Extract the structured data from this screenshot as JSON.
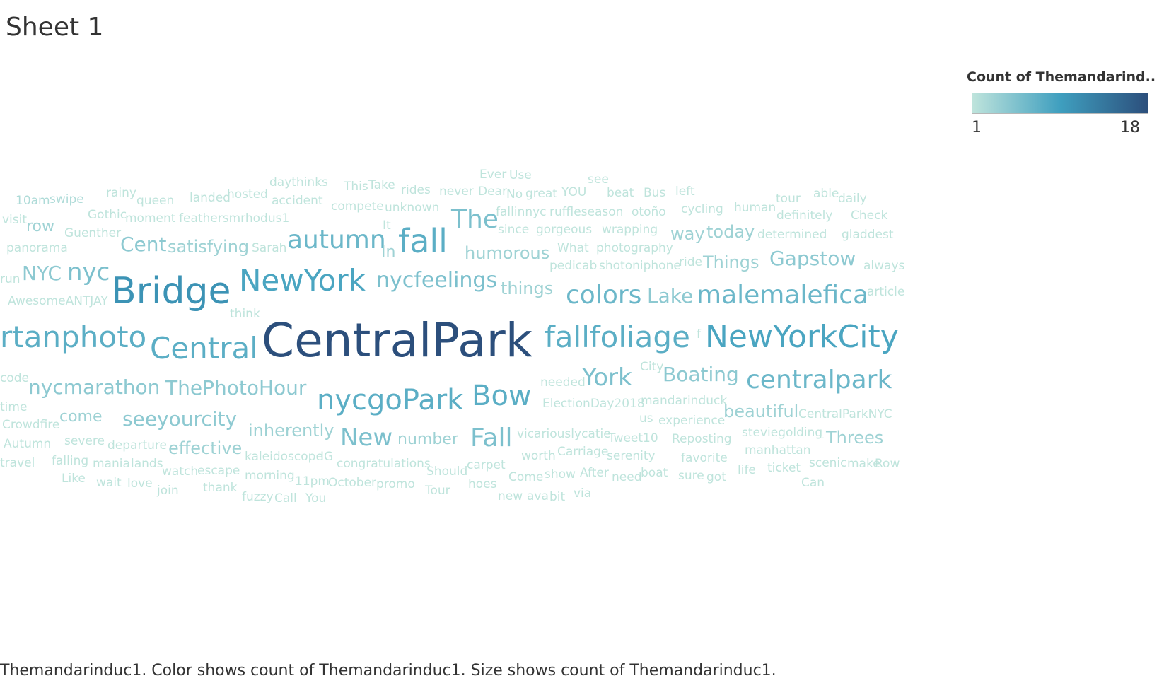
{
  "sheet_title": "Sheet 1",
  "legend": {
    "title": "Count of Themandarind..",
    "min_label": "1",
    "max_label": "18",
    "color_low": "#bfe4dc",
    "color_mid": "#3f9fbf",
    "color_high": "#2c4f7c"
  },
  "caption": "Themandarinduc1.  Color shows count of Themandarinduc1.  Size shows count of Themandarinduc1.",
  "chart_data": {
    "type": "word-cloud",
    "color_measure": "count",
    "size_measure": "count",
    "count_range": [
      1,
      18
    ],
    "words": [
      {
        "text": "CentralPark",
        "count": 18
      },
      {
        "text": "Bridge",
        "count": 10
      },
      {
        "text": "NewYork",
        "count": 8
      },
      {
        "text": "NewYorkCity",
        "count": 8
      },
      {
        "text": "fall",
        "count": 7
      },
      {
        "text": "nycgoPark",
        "count": 7
      },
      {
        "text": "fallfoliage",
        "count": 7
      },
      {
        "text": "rtanphoto",
        "count": 7
      },
      {
        "text": "Central",
        "count": 7
      },
      {
        "text": "Bow",
        "count": 7
      },
      {
        "text": "malemalefica",
        "count": 6
      },
      {
        "text": "centralpark",
        "count": 6
      },
      {
        "text": "autumn",
        "count": 6
      },
      {
        "text": "colors",
        "count": 6
      },
      {
        "text": "York",
        "count": 5
      },
      {
        "text": "nycfeelings",
        "count": 5
      },
      {
        "text": "Fall",
        "count": 5
      },
      {
        "text": "New",
        "count": 5
      },
      {
        "text": "The",
        "count": 5
      },
      {
        "text": "nyc",
        "count": 5
      },
      {
        "text": "nycmarathon",
        "count": 4
      },
      {
        "text": "ThePhotoHour",
        "count": 4
      },
      {
        "text": "seeyourcity",
        "count": 4
      },
      {
        "text": "Boating",
        "count": 4
      },
      {
        "text": "Gapstow",
        "count": 4
      },
      {
        "text": "NYC",
        "count": 4
      },
      {
        "text": "Cent",
        "count": 4
      },
      {
        "text": "Lake",
        "count": 4
      },
      {
        "text": "inherently",
        "count": 3
      },
      {
        "text": "effective",
        "count": 3
      },
      {
        "text": "satisfying",
        "count": 3
      },
      {
        "text": "humorous",
        "count": 3
      },
      {
        "text": "things",
        "count": 3
      },
      {
        "text": "Things",
        "count": 3
      },
      {
        "text": "Threes",
        "count": 3
      },
      {
        "text": "beautiful",
        "count": 3
      },
      {
        "text": "number",
        "count": 3
      },
      {
        "text": "way",
        "count": 3
      },
      {
        "text": "today",
        "count": 3
      },
      {
        "text": "come",
        "count": 3
      },
      {
        "text": "row",
        "count": 3
      },
      {
        "text": "In",
        "count": 3
      },
      {
        "text": "10am",
        "count": 2
      },
      {
        "text": "swipe",
        "count": 2
      },
      {
        "text": "rainy",
        "count": 1
      },
      {
        "text": "queen",
        "count": 1
      },
      {
        "text": "landed",
        "count": 1
      },
      {
        "text": "hosted",
        "count": 1
      },
      {
        "text": "daythinks",
        "count": 1
      },
      {
        "text": "accident",
        "count": 1
      },
      {
        "text": "This",
        "count": 1
      },
      {
        "text": "Take",
        "count": 1
      },
      {
        "text": "rides",
        "count": 1
      },
      {
        "text": "never",
        "count": 1
      },
      {
        "text": "Ever",
        "count": 1
      },
      {
        "text": "Use",
        "count": 1
      },
      {
        "text": "Dear",
        "count": 1
      },
      {
        "text": "No",
        "count": 1
      },
      {
        "text": "great",
        "count": 1
      },
      {
        "text": "YOU",
        "count": 1
      },
      {
        "text": "see",
        "count": 1
      },
      {
        "text": "beat",
        "count": 1
      },
      {
        "text": "Bus",
        "count": 1
      },
      {
        "text": "left",
        "count": 1
      },
      {
        "text": "tour",
        "count": 1
      },
      {
        "text": "able",
        "count": 1
      },
      {
        "text": "daily",
        "count": 1
      },
      {
        "text": "visit",
        "count": 1
      },
      {
        "text": "Gothic",
        "count": 1
      },
      {
        "text": "moment",
        "count": 1
      },
      {
        "text": "feathersmrhodus1",
        "count": 1
      },
      {
        "text": "compete",
        "count": 1
      },
      {
        "text": "unknown",
        "count": 1
      },
      {
        "text": "fallinnyc",
        "count": 1
      },
      {
        "text": "ruffleseason",
        "count": 1
      },
      {
        "text": "otoño",
        "count": 1
      },
      {
        "text": "cycling",
        "count": 1
      },
      {
        "text": "human",
        "count": 1
      },
      {
        "text": "definitely",
        "count": 1
      },
      {
        "text": "Check",
        "count": 1
      },
      {
        "text": "Guenther",
        "count": 1
      },
      {
        "text": "It",
        "count": 1
      },
      {
        "text": "since",
        "count": 1
      },
      {
        "text": "gorgeous",
        "count": 1
      },
      {
        "text": "wrapping",
        "count": 1
      },
      {
        "text": "determined",
        "count": 1
      },
      {
        "text": "gladdest",
        "count": 1
      },
      {
        "text": "panorama",
        "count": 1
      },
      {
        "text": "Sarah",
        "count": 1
      },
      {
        "text": "What",
        "count": 1
      },
      {
        "text": "photography",
        "count": 1
      },
      {
        "text": "pedicab",
        "count": 1
      },
      {
        "text": "shotoniphone",
        "count": 1
      },
      {
        "text": "ride",
        "count": 1
      },
      {
        "text": "always",
        "count": 1
      },
      {
        "text": "run",
        "count": 1
      },
      {
        "text": "article",
        "count": 1
      },
      {
        "text": "AwesomeANTJAY",
        "count": 1
      },
      {
        "text": "think",
        "count": 1
      },
      {
        "text": "f",
        "count": 1
      },
      {
        "text": "City",
        "count": 1
      },
      {
        "text": "code",
        "count": 1
      },
      {
        "text": "needed",
        "count": 1
      },
      {
        "text": "mandarinduck",
        "count": 1
      },
      {
        "text": "time",
        "count": 1
      },
      {
        "text": "ElectionDay2018",
        "count": 1
      },
      {
        "text": "Crowdfire",
        "count": 1
      },
      {
        "text": "us",
        "count": 1
      },
      {
        "text": "experience",
        "count": 1
      },
      {
        "text": "CentralParkNYC",
        "count": 1
      },
      {
        "text": "Autumn",
        "count": 1
      },
      {
        "text": "severe",
        "count": 1
      },
      {
        "text": "departure",
        "count": 1
      },
      {
        "text": "vicariouslycatie",
        "count": 1
      },
      {
        "text": "Tweet10",
        "count": 1
      },
      {
        "text": "Reposting",
        "count": 1
      },
      {
        "text": "steviegolding",
        "count": 1
      },
      {
        "text": "_",
        "count": 1
      },
      {
        "text": "kaleidoscope",
        "count": 1
      },
      {
        "text": "IG",
        "count": 1
      },
      {
        "text": "worth",
        "count": 1
      },
      {
        "text": "Carriage",
        "count": 1
      },
      {
        "text": "serenity",
        "count": 1
      },
      {
        "text": "favorite",
        "count": 1
      },
      {
        "text": "manhattan",
        "count": 1
      },
      {
        "text": "travel",
        "count": 1
      },
      {
        "text": "falling",
        "count": 1
      },
      {
        "text": "mania",
        "count": 1
      },
      {
        "text": "lands",
        "count": 1
      },
      {
        "text": "watch",
        "count": 1
      },
      {
        "text": "escape",
        "count": 1
      },
      {
        "text": "congratulations",
        "count": 1
      },
      {
        "text": "Should",
        "count": 1
      },
      {
        "text": "carpet",
        "count": 1
      },
      {
        "text": "scenic",
        "count": 1
      },
      {
        "text": "make",
        "count": 1
      },
      {
        "text": "Row",
        "count": 1
      },
      {
        "text": "Like",
        "count": 1
      },
      {
        "text": "morning",
        "count": 1
      },
      {
        "text": "Come",
        "count": 1
      },
      {
        "text": "show",
        "count": 1
      },
      {
        "text": "After",
        "count": 1
      },
      {
        "text": "need",
        "count": 1
      },
      {
        "text": "boat",
        "count": 1
      },
      {
        "text": "sure",
        "count": 1
      },
      {
        "text": "got",
        "count": 1
      },
      {
        "text": "life",
        "count": 1
      },
      {
        "text": "ticket",
        "count": 1
      },
      {
        "text": "wait",
        "count": 1
      },
      {
        "text": "love",
        "count": 1
      },
      {
        "text": "11pm",
        "count": 1
      },
      {
        "text": "October",
        "count": 1
      },
      {
        "text": "promo",
        "count": 1
      },
      {
        "text": "hoes",
        "count": 1
      },
      {
        "text": "Can",
        "count": 1
      },
      {
        "text": "join",
        "count": 1
      },
      {
        "text": "thank",
        "count": 1
      },
      {
        "text": "Tour",
        "count": 1
      },
      {
        "text": "new",
        "count": 1
      },
      {
        "text": "ava",
        "count": 1
      },
      {
        "text": "bit",
        "count": 1
      },
      {
        "text": "via",
        "count": 1
      },
      {
        "text": "fuzzy",
        "count": 1
      },
      {
        "text": "Call",
        "count": 1
      },
      {
        "text": "You",
        "count": 1
      }
    ]
  }
}
